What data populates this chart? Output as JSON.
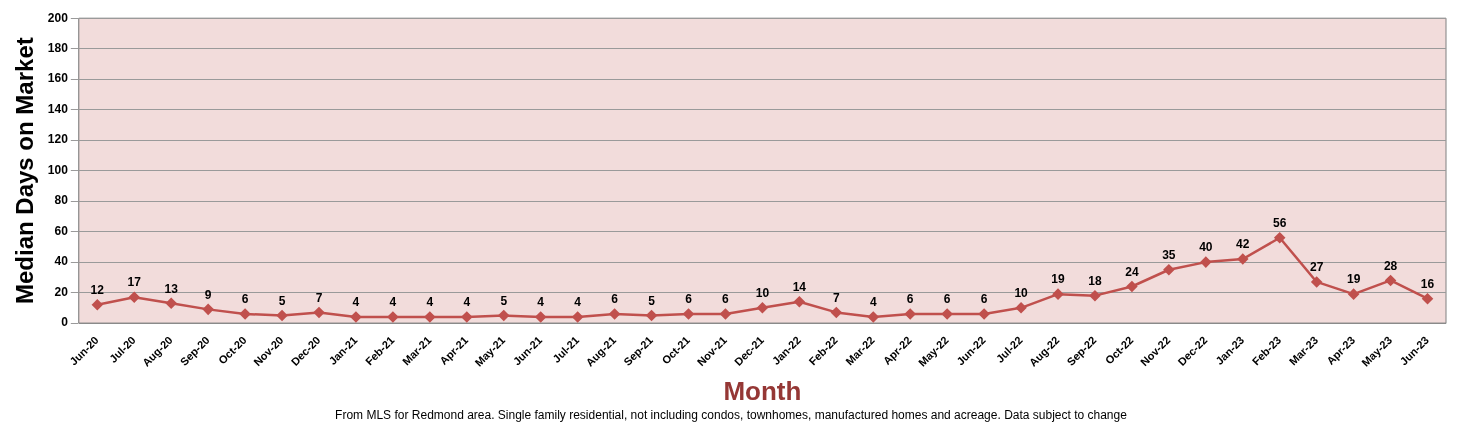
{
  "chart_data": {
    "type": "line",
    "xlabel": "Month",
    "ylabel": "Median Days on Market",
    "annotations": [
      "From MLS for Redmond area. Single family residential, not including condos, townhomes, manufactured homes and acreage.  Data subject to change"
    ],
    "categories": [
      "Jun-20",
      "Jul-20",
      "Aug-20",
      "Sep-20",
      "Oct-20",
      "Nov-20",
      "Dec-20",
      "Jan-21",
      "Feb-21",
      "Mar-21",
      "Apr-21",
      "May-21",
      "Jun-21",
      "Jul-21",
      "Aug-21",
      "Sep-21",
      "Oct-21",
      "Nov-21",
      "Dec-21",
      "Jan-22",
      "Feb-22",
      "Mar-22",
      "Apr-22",
      "May-22",
      "Jun-22",
      "Jul-22",
      "Aug-22",
      "Sep-22",
      "Oct-22",
      "Nov-22",
      "Dec-22",
      "Jan-23",
      "Feb-23",
      "Mar-23",
      "Apr-23",
      "May-23",
      "Jun-23"
    ],
    "series": [
      {
        "color": "#c0504d",
        "values": [
          12,
          17,
          13,
          9,
          6,
          5,
          7,
          4,
          4,
          4,
          4,
          5,
          4,
          4,
          6,
          5,
          6,
          6,
          10,
          14,
          7,
          4,
          6,
          6,
          6,
          10,
          19,
          18,
          24,
          35,
          40,
          42,
          56,
          27,
          19,
          28,
          16
        ]
      }
    ],
    "ylim": [
      0,
      200
    ],
    "yticks": [
      0,
      20,
      40,
      60,
      80,
      100,
      120,
      140,
      160,
      180,
      200
    ],
    "grid": "y",
    "marker": "diamond",
    "line_style": "solid",
    "data_labels": true,
    "legend": false
  }
}
